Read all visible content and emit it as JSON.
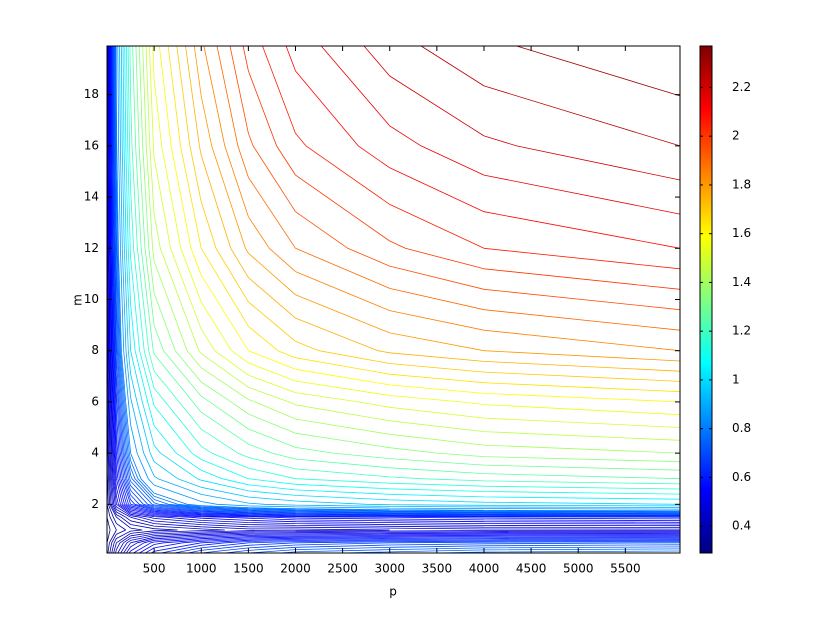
{
  "chart_data": {
    "type": "contour",
    "x_label": "p",
    "y_label": "m",
    "x": [
      0,
      100,
      250,
      500,
      1000,
      1500,
      2000,
      3000,
      4000,
      6080
    ],
    "y": [
      0.1,
      0.5,
      1,
      1.5,
      2,
      3,
      4,
      6,
      8,
      12,
      16,
      19.9
    ],
    "z": [
      [
        0.33,
        0.43,
        0.53,
        0.61,
        0.68,
        0.72,
        0.75,
        0.77,
        0.79,
        0.8
      ],
      [
        0.32,
        0.4,
        0.48,
        0.55,
        0.6,
        0.64,
        0.66,
        0.68,
        0.69,
        0.7
      ],
      [
        0.31,
        0.34,
        0.37,
        0.39,
        0.41,
        0.43,
        0.43,
        0.44,
        0.45,
        0.45
      ],
      [
        0.32,
        0.38,
        0.44,
        0.49,
        0.53,
        0.55,
        0.57,
        0.58,
        0.59,
        0.6
      ],
      [
        0.34,
        0.48,
        0.62,
        0.73,
        0.83,
        0.89,
        0.92,
        0.96,
        0.98,
        1.0
      ],
      [
        0.35,
        0.54,
        0.73,
        0.89,
        1.01,
        1.1,
        1.15,
        1.19,
        1.22,
        1.25
      ],
      [
        0.36,
        0.58,
        0.8,
        0.98,
        1.13,
        1.22,
        1.28,
        1.33,
        1.37,
        1.4
      ],
      [
        0.37,
        0.63,
        0.89,
        1.11,
        1.28,
        1.39,
        1.46,
        1.52,
        1.56,
        1.6
      ],
      [
        0.38,
        0.69,
        1.0,
        1.26,
        1.46,
        1.6,
        1.68,
        1.76,
        1.8,
        1.85
      ],
      [
        0.39,
        0.75,
        1.11,
        1.42,
        1.65,
        1.81,
        1.9,
        1.99,
        2.05,
        2.1
      ],
      [
        0.4,
        0.79,
        1.18,
        1.51,
        1.76,
        1.94,
        2.04,
        2.13,
        2.19,
        2.25
      ],
      [
        0.4,
        0.81,
        1.22,
        1.57,
        1.84,
        2.02,
        2.12,
        2.23,
        2.29,
        2.35
      ]
    ],
    "levels": [
      0.32,
      0.34,
      0.36,
      0.38,
      0.4,
      0.42,
      0.44,
      0.46,
      0.48,
      0.5,
      0.52,
      0.54,
      0.56,
      0.58,
      0.6,
      0.62,
      0.64,
      0.66,
      0.68,
      0.7,
      0.72,
      0.74,
      0.76,
      0.78,
      0.8,
      0.85,
      0.9,
      0.95,
      1.0,
      1.05,
      1.1,
      1.15,
      1.2,
      1.25,
      1.3,
      1.35,
      1.4,
      1.45,
      1.5,
      1.55,
      1.6,
      1.65,
      1.7,
      1.75,
      1.8,
      1.85,
      1.9,
      1.95,
      2.0,
      2.05,
      2.1,
      2.15,
      2.2,
      2.25,
      2.3
    ],
    "colormap": "jet",
    "xlim": [
      0,
      6080
    ],
    "ylim": [
      0.1,
      19.9
    ],
    "clim": [
      0.29,
      2.37
    ],
    "xticks": [
      500,
      1000,
      1500,
      2000,
      2500,
      3000,
      3500,
      4000,
      4500,
      5000,
      5500
    ],
    "yticks": [
      2,
      4,
      6,
      8,
      10,
      12,
      14,
      16,
      18
    ],
    "cticks": [
      0.4,
      0.6,
      0.8,
      1,
      1.2,
      1.4,
      1.6,
      1.8,
      2,
      2.2
    ]
  }
}
